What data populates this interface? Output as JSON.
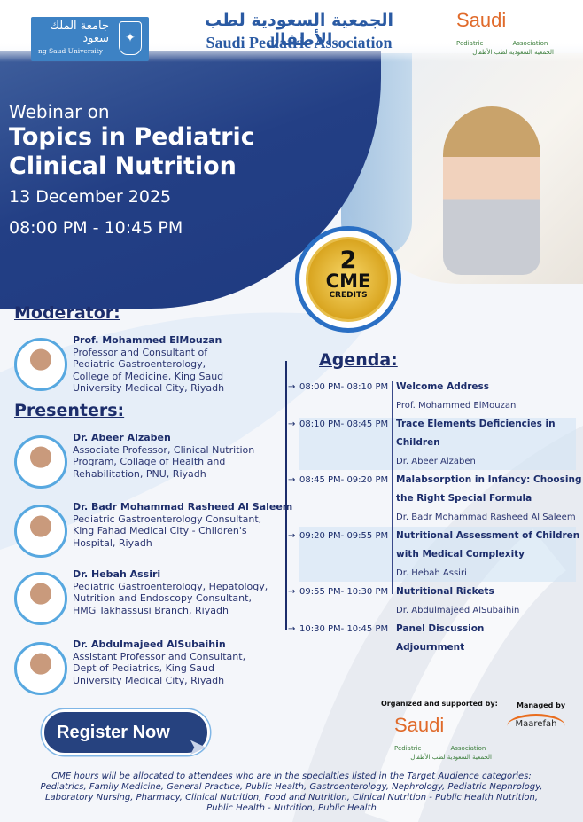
{
  "colors": {
    "navy": "#1c2d6b",
    "banner_blue": "#233f85",
    "accent_blue": "#57a8e0",
    "gold": "#d9a520"
  },
  "header": {
    "ksu_logo": {
      "arabic": "جامعة الملك سعود",
      "english": "ng Saud University"
    },
    "spa_title_ar": "الجمعية السعودية لطب الأطفال",
    "spa_title_en": "Saudi Pediatric Association",
    "spa_logo": {
      "word": "Saudi",
      "left": "Pediatric",
      "right": "Association",
      "arabic": "الجمعية السعودية لطب الأطفال"
    }
  },
  "hero": {
    "kicker": "Webinar on",
    "title_line1": "Topics in Pediatric",
    "title_line2": "Clinical Nutrition",
    "date": "13 December 2025",
    "time": "08:00 PM - 10:45 PM"
  },
  "cme_badge": {
    "number": "2",
    "label": "CME",
    "sub": "CREDITS"
  },
  "moderator": {
    "heading": "Moderator:",
    "name": "Prof. Mohammed ElMouzan",
    "lines": [
      "Professor and Consultant of",
      "Pediatric Gastroenterology,",
      "College of Medicine, King Saud",
      "University Medical City, Riyadh"
    ]
  },
  "presenters": {
    "heading": "Presenters:",
    "items": [
      {
        "name": "Dr. Abeer Alzaben",
        "lines": [
          "Associate Professor, Clinical Nutrition",
          "Program, Collage of Health and",
          "Rehabilitation, PNU, Riyadh"
        ]
      },
      {
        "name": "Dr. Badr Mohammad Rasheed Al Saleem",
        "lines": [
          "Pediatric Gastroenterology Consultant,",
          "King Fahad Medical City - Children's",
          "Hospital, Riyadh"
        ]
      },
      {
        "name": "Dr. Hebah Assiri",
        "lines": [
          "Pediatric Gastroenterology, Hepatology,",
          "Nutrition and Endoscopy Consultant,",
          "HMG Takhassusi Branch, Riyadh"
        ]
      },
      {
        "name": "Dr. Abdulmajeed AlSubaihin",
        "lines": [
          "Assistant Professor and Consultant,",
          "Dept of Pediatrics, King Saud",
          "University Medical City, Riyadh"
        ]
      }
    ]
  },
  "agenda": {
    "heading": "Agenda:",
    "items": [
      {
        "time": "08:00 PM- 08:10 PM",
        "title": [
          "Welcome Address"
        ],
        "speaker": "Prof. Mohammed ElMouzan"
      },
      {
        "time": "08:10 PM- 08:45 PM",
        "title": [
          "Trace Elements Deficiencies in",
          "Children"
        ],
        "speaker": "Dr. Abeer Alzaben"
      },
      {
        "time": "08:45 PM- 09:20 PM",
        "title": [
          "Malabsorption in Infancy: Choosing",
          "the Right Special Formula"
        ],
        "speaker": "Dr. Badr Mohammad Rasheed Al Saleem"
      },
      {
        "time": "09:20 PM- 09:55 PM",
        "title": [
          "Nutritional Assessment of Children",
          "with Medical Complexity"
        ],
        "speaker": "Dr. Hebah Assiri"
      },
      {
        "time": "09:55 PM- 10:30 PM",
        "title": [
          "Nutritional Rickets"
        ],
        "speaker": "Dr. Abdulmajeed AlSubaihin"
      },
      {
        "time": "10:30 PM- 10:45 PM",
        "title": [
          "Panel Discussion",
          "Adjournment"
        ]
      }
    ]
  },
  "register": {
    "label": "Register Now"
  },
  "sponsors": {
    "organized_label": "Organized and supported by:",
    "managed_label": "Managed by",
    "managed_logo": "Maarefah"
  },
  "footer": {
    "lines": [
      "CME hours will be allocated to attendees who are in the specialties listed in the Target Audience categories:",
      "Pediatrics, Family Medicine, General Practice, Public Health, Gastroenterology, Nephrology, Pediatric Nephrology,",
      "Laboratory Nursing, Pharmacy, Clinical Nutrition, Food and Nutrition, Clinical Nutrition - Public Health Nutrition,",
      "Public Health - Nutrition, Public Health"
    ]
  }
}
